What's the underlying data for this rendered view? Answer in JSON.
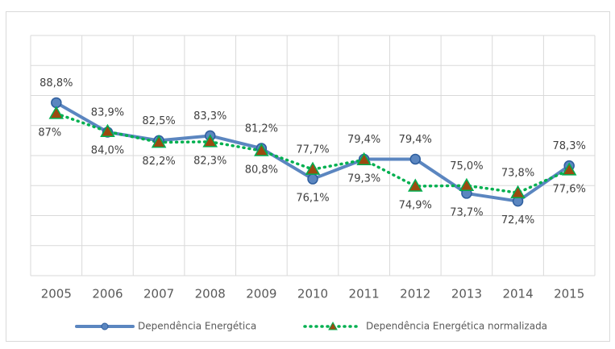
{
  "chart_data": {
    "type": "line",
    "categories": [
      "2005",
      "2006",
      "2007",
      "2008",
      "2009",
      "2010",
      "2011",
      "2012",
      "2013",
      "2014",
      "2015"
    ],
    "series": [
      {
        "name": "Dependência Energética",
        "color": "#5b86c0",
        "values": [
          88.8,
          83.9,
          82.5,
          83.3,
          81.2,
          76.1,
          79.4,
          79.4,
          73.7,
          72.4,
          78.3
        ],
        "value_labels": [
          "88,8%",
          "83,9%",
          "82,5%",
          "83,3%",
          "81,2%",
          "76,1%",
          "79,4%",
          "79,4%",
          "73,7%",
          "72,4%",
          "78,3%"
        ]
      },
      {
        "name": "Dependência Energética normalizada",
        "color": "#00b050",
        "values": [
          87,
          84.0,
          82.2,
          82.3,
          80.8,
          77.7,
          79.3,
          74.9,
          75.0,
          73.8,
          77.6
        ],
        "value_labels": [
          "87%",
          "84,0%",
          "82,2%",
          "82,3%",
          "80,8%",
          "77,7%",
          "79,3%",
          "74,9%",
          "75,0%",
          "73,8%",
          "77,6%"
        ]
      }
    ],
    "ylim": [
      60,
      100
    ],
    "yticks": [
      60,
      65,
      70,
      75,
      80,
      85,
      90,
      95,
      100
    ],
    "grid": true,
    "legend": "bottom"
  }
}
